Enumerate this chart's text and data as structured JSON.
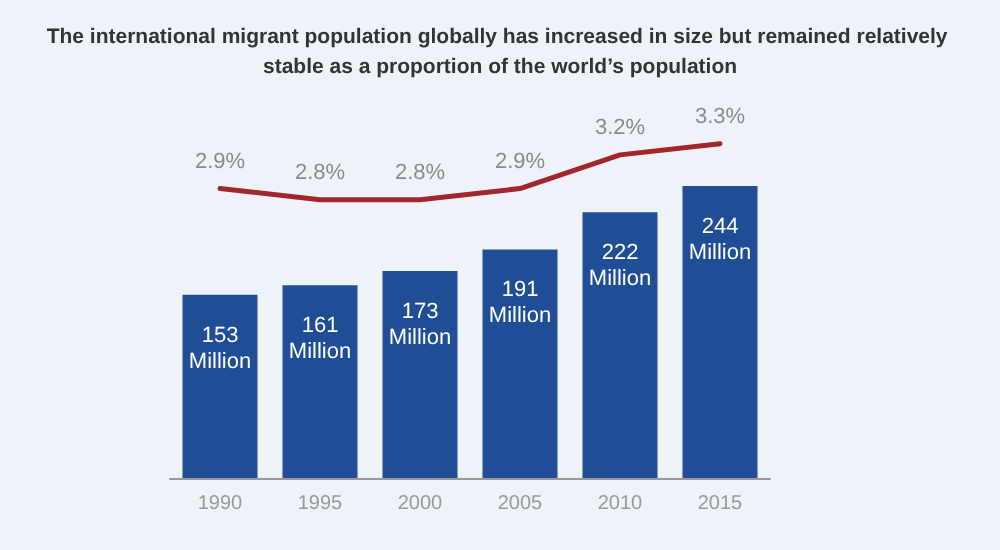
{
  "chart_data": {
    "type": "bar",
    "title": "The international migrant population globally has increased in size but remained relatively stable as a proportion of the world’s population",
    "categories": [
      "1990",
      "1995",
      "2000",
      "2005",
      "2010",
      "2015"
    ],
    "series": [
      {
        "color": "#1f4e96",
        "values": [
          153,
          161,
          173,
          191,
          222,
          244
        ],
        "value_labels": [
          "153 Million",
          "161 Million",
          "173 Million",
          "191 Million",
          "222 Million",
          "244 Million"
        ]
      },
      {
        "type": "line",
        "axis": "y2",
        "color": "#a3262c",
        "values": [
          2.9,
          2.8,
          2.8,
          2.9,
          3.2,
          3.3
        ],
        "value_labels": [
          "2.9%",
          "2.8%",
          "2.8%",
          "2.9%",
          "3.2%",
          "3.3%"
        ]
      }
    ],
    "grid": false,
    "marker": "none",
    "line_style": "solid"
  }
}
